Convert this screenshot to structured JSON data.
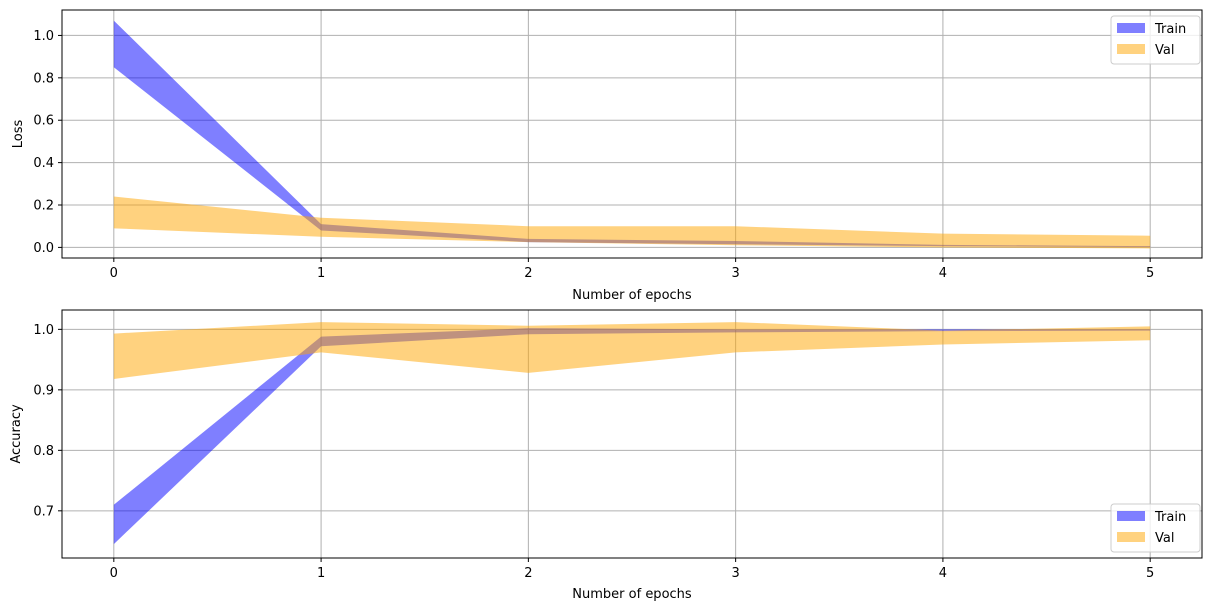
{
  "chart_data": [
    {
      "type": "area",
      "xlabel": "Number of epochs",
      "ylabel": "Loss",
      "x": [
        0,
        1,
        2,
        3,
        4,
        5
      ],
      "xticks": [
        "0",
        "1",
        "2",
        "3",
        "4",
        "5"
      ],
      "yticks": [
        0.0,
        0.2,
        0.4,
        0.6,
        0.8,
        1.0
      ],
      "ytick_labels": [
        "0.0",
        "0.2",
        "0.4",
        "0.6",
        "0.8",
        "1.0"
      ],
      "xlim": [
        -0.25,
        5.25
      ],
      "ylim": [
        -0.05,
        1.12
      ],
      "grid": true,
      "legend_position": "top-right",
      "series": [
        {
          "name": "Train",
          "color": "#0000ff",
          "alpha": 0.5,
          "lower": [
            0.85,
            0.08,
            0.025,
            0.015,
            0.006,
            0.002
          ],
          "upper": [
            1.07,
            0.11,
            0.04,
            0.03,
            0.012,
            0.006
          ]
        },
        {
          "name": "Val",
          "color": "#ffa500",
          "alpha": 0.5,
          "lower": [
            0.09,
            0.05,
            0.025,
            0.01,
            0.0,
            -0.005
          ],
          "upper": [
            0.24,
            0.14,
            0.1,
            0.1,
            0.065,
            0.055
          ]
        }
      ]
    },
    {
      "type": "area",
      "xlabel": "Number of epochs",
      "ylabel": "Accuracy",
      "x": [
        0,
        1,
        2,
        3,
        4,
        5
      ],
      "xticks": [
        "0",
        "1",
        "2",
        "3",
        "4",
        "5"
      ],
      "yticks": [
        0.7,
        0.8,
        0.9,
        1.0
      ],
      "ytick_labels": [
        "0.7",
        "0.8",
        "0.9",
        "1.0"
      ],
      "xlim": [
        -0.25,
        5.25
      ],
      "ylim": [
        0.622,
        1.032
      ],
      "grid": true,
      "legend_position": "bottom-right",
      "series": [
        {
          "name": "Train",
          "color": "#0000ff",
          "alpha": 0.5,
          "lower": [
            0.645,
            0.972,
            0.992,
            0.995,
            0.997,
            0.998
          ],
          "upper": [
            0.71,
            0.988,
            1.002,
            1.0,
            1.0,
            1.0
          ]
        },
        {
          "name": "Val",
          "color": "#ffa500",
          "alpha": 0.5,
          "lower": [
            0.918,
            0.962,
            0.928,
            0.962,
            0.975,
            0.982
          ],
          "upper": [
            0.993,
            1.012,
            1.006,
            1.012,
            0.998,
            1.005
          ]
        }
      ]
    }
  ]
}
